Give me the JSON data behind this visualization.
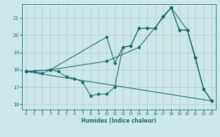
{
  "xlabel": "Humidex (Indice chaleur)",
  "background_color": "#cce8e8",
  "grid_color": "#aacccc",
  "line_color": "#1a6b6b",
  "xlim": [
    -0.5,
    23.5
  ],
  "ylim": [
    15.7,
    21.8
  ],
  "yticks": [
    16,
    17,
    18,
    19,
    20,
    21
  ],
  "xticks": [
    0,
    1,
    2,
    3,
    4,
    5,
    6,
    7,
    8,
    9,
    10,
    11,
    12,
    13,
    14,
    15,
    16,
    17,
    18,
    19,
    20,
    21,
    22,
    23
  ],
  "series": [
    [
      0,
      17.9,
      1,
      17.9,
      2,
      17.8,
      3,
      18.0,
      4,
      17.9,
      5,
      17.6,
      6,
      17.5,
      7,
      17.3,
      8,
      16.5,
      9,
      16.6,
      10,
      16.6,
      11,
      17.0,
      12,
      19.3,
      13,
      19.4,
      14,
      20.4,
      15,
      20.4,
      16,
      20.4,
      17,
      21.1,
      18,
      21.6,
      19,
      20.3,
      20,
      20.3,
      21,
      18.7,
      22,
      16.9,
      23,
      16.2
    ],
    [
      0,
      17.9,
      3,
      18.0,
      10,
      18.5,
      14,
      19.3,
      18,
      21.6,
      20,
      20.3,
      22,
      16.9,
      23,
      16.2
    ],
    [
      0,
      17.9,
      3,
      18.0,
      10,
      19.9,
      11,
      18.4,
      12,
      19.3,
      13,
      19.4,
      14,
      20.4,
      15,
      20.4,
      16,
      20.4,
      17,
      21.1,
      18,
      21.6,
      19,
      20.3,
      20,
      20.3,
      21,
      18.7,
      22,
      16.9,
      23,
      16.2
    ],
    [
      0,
      17.9,
      23,
      16.2
    ]
  ]
}
